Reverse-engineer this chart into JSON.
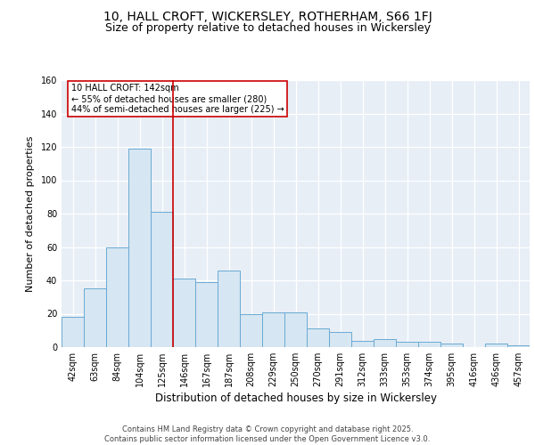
{
  "title1": "10, HALL CROFT, WICKERSLEY, ROTHERHAM, S66 1FJ",
  "title2": "Size of property relative to detached houses in Wickersley",
  "xlabel": "Distribution of detached houses by size in Wickersley",
  "ylabel": "Number of detached properties",
  "categories": [
    "42sqm",
    "63sqm",
    "84sqm",
    "104sqm",
    "125sqm",
    "146sqm",
    "167sqm",
    "187sqm",
    "208sqm",
    "229sqm",
    "250sqm",
    "270sqm",
    "291sqm",
    "312sqm",
    "333sqm",
    "353sqm",
    "374sqm",
    "395sqm",
    "416sqm",
    "436sqm",
    "457sqm"
  ],
  "values": [
    18,
    35,
    60,
    119,
    81,
    41,
    39,
    46,
    20,
    21,
    21,
    11,
    9,
    4,
    5,
    3,
    3,
    2,
    0,
    2,
    1
  ],
  "bar_color": "#d6e6f2",
  "bar_edge_color": "#6aaad4",
  "vline_x": 4.5,
  "vline_color": "#cc0000",
  "annotation_text": "10 HALL CROFT: 142sqm\n← 55% of detached houses are smaller (280)\n44% of semi-detached houses are larger (225) →",
  "annotation_box_color": "#cc0000",
  "ylim": [
    0,
    160
  ],
  "yticks": [
    0,
    20,
    40,
    60,
    80,
    100,
    120,
    140,
    160
  ],
  "background_color": "#e8eef5",
  "grid_color": "#ffffff",
  "footer": "Contains HM Land Registry data © Crown copyright and database right 2025.\nContains public sector information licensed under the Open Government Licence v3.0.",
  "title1_fontsize": 10,
  "title2_fontsize": 9,
  "xlabel_fontsize": 8.5,
  "ylabel_fontsize": 8,
  "tick_fontsize": 7,
  "footer_fontsize": 6,
  "annotation_fontsize": 7
}
